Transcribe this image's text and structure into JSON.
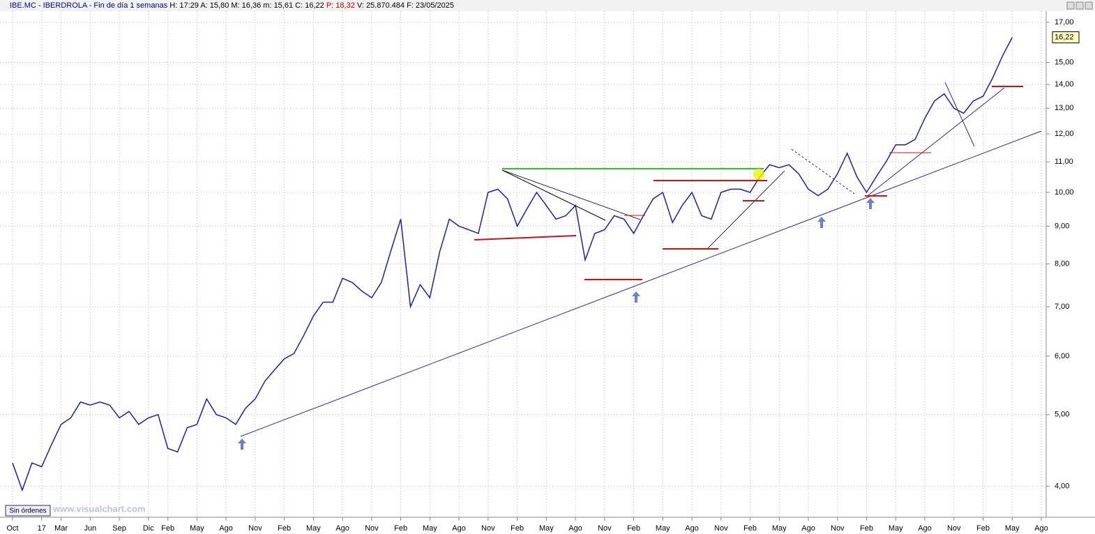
{
  "header": {
    "symbol": "IBE.MC - IBERDROLA - Fin de día 1 semanas",
    "fields": [
      {
        "label": "H:",
        "value": "17:29"
      },
      {
        "label": "A:",
        "value": "15,80"
      },
      {
        "label": "M:",
        "value": "16,36"
      },
      {
        "label": "m:",
        "value": "15,61"
      },
      {
        "label": "C:",
        "value": "16,22"
      },
      {
        "label": "P:",
        "value": "18,32"
      },
      {
        "label": "V:",
        "value": "25.870.484"
      },
      {
        "label": "F:",
        "value": "23/05/2025"
      }
    ]
  },
  "button": "Sin órdenes",
  "watermark": "www.visualchart.com",
  "chart_data": {
    "type": "line",
    "log_scale": true,
    "grid": true,
    "last_label": "16,22",
    "categories": [
      "Oct",
      null,
      null,
      "17",
      null,
      "Mar",
      null,
      null,
      "Jun",
      null,
      null,
      "Sep",
      null,
      null,
      "Dic",
      null,
      "Feb",
      null,
      null,
      "May",
      null,
      null,
      "Ago",
      null,
      null,
      "Nov",
      null,
      null,
      "Feb",
      null,
      null,
      "May",
      null,
      null,
      "Ago",
      null,
      null,
      "Nov",
      null,
      null,
      "Feb",
      null,
      null,
      "May",
      null,
      null,
      "Ago",
      null,
      null,
      "Nov",
      null,
      null,
      "Feb",
      null,
      null,
      "May",
      null,
      null,
      "Ago",
      null,
      null,
      "Nov",
      null,
      null,
      "Feb",
      null,
      null,
      "May",
      null,
      null,
      "Ago",
      null,
      null,
      "Nov",
      null,
      null,
      "Feb",
      null,
      null,
      "May",
      null,
      null,
      "Ago",
      null,
      null,
      "Nov",
      null,
      null,
      "Feb",
      null,
      null,
      "May",
      null,
      null,
      "Ago",
      null,
      null,
      "Nov",
      null,
      null,
      "Feb",
      null,
      null,
      "May",
      null,
      null,
      "Ago"
    ],
    "series": [
      {
        "color": "#1a1acc",
        "values": [
          4.3,
          3.95,
          4.3,
          4.25,
          4.55,
          4.85,
          4.95,
          5.2,
          5.15,
          5.2,
          5.15,
          4.95,
          5.05,
          4.85,
          4.95,
          5.0,
          4.5,
          4.45,
          4.8,
          4.85,
          5.25,
          5.0,
          4.95,
          4.85,
          5.1,
          5.25,
          5.55,
          5.75,
          5.95,
          6.05,
          6.4,
          6.8,
          7.1,
          7.1,
          7.65,
          7.55,
          7.35,
          7.2,
          7.55,
          8.35,
          9.2,
          7.0,
          7.5,
          7.2,
          8.3,
          9.2,
          9.0,
          8.9,
          8.8,
          10.0,
          10.1,
          9.8,
          9.0,
          9.5,
          10.0,
          9.6,
          9.2,
          9.3,
          9.6,
          8.1,
          8.8,
          8.9,
          9.3,
          9.2,
          8.8,
          9.3,
          9.8,
          10.0,
          9.1,
          9.6,
          10.0,
          9.3,
          9.2,
          10.0,
          10.1,
          10.1,
          10.0,
          10.5,
          10.9,
          10.8,
          10.9,
          10.6,
          10.1,
          9.9,
          10.1,
          10.6,
          11.3,
          10.5,
          10.0,
          10.5,
          11.0,
          11.6,
          11.6,
          11.8,
          12.6,
          13.3,
          13.6,
          13.0,
          12.8,
          13.3,
          13.5,
          14.3,
          15.3,
          16.22,
          null,
          null,
          null
        ]
      }
    ],
    "ylim": [
      3.63,
      17.6
    ],
    "yticks": [
      {
        "value": 4,
        "label": "4,00"
      },
      {
        "value": 5,
        "label": "5,00"
      },
      {
        "value": 6,
        "label": "6,00"
      },
      {
        "value": 7,
        "label": "7,00"
      },
      {
        "value": 8,
        "label": "8,00"
      },
      {
        "value": 9,
        "label": "9,00"
      },
      {
        "value": 10,
        "label": "10,00"
      },
      {
        "value": 11,
        "label": "11,00"
      },
      {
        "value": 12,
        "label": "12,00"
      },
      {
        "value": 13,
        "label": "13,00"
      },
      {
        "value": 14,
        "label": "14,00"
      },
      {
        "value": 15,
        "label": "15,00"
      },
      {
        "value": 17,
        "label": "17,00"
      }
    ]
  }
}
